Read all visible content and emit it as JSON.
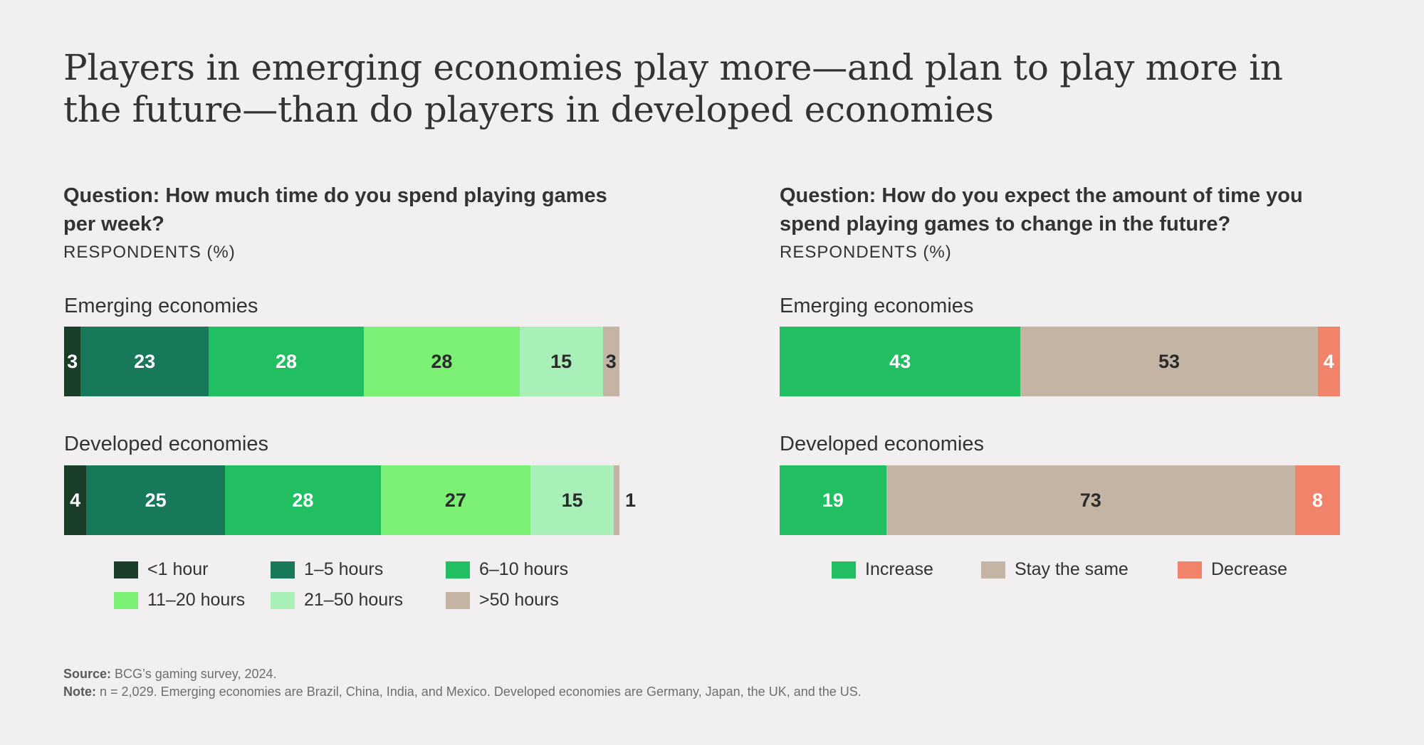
{
  "title": "Players in emerging economies play more—and plan to play more in the future—than do players in developed economies",
  "chart_data": [
    {
      "type": "bar",
      "orientation": "horizontal-stacked",
      "question": "Question: How much time do you spend playing games per week?",
      "unit": "RESPONDENTS (%)",
      "categories": [
        "Emerging economies",
        "Developed economies"
      ],
      "series": [
        {
          "name": "<1 hour",
          "color": "#1a3d27",
          "label_color": "#ffffff",
          "values": [
            3,
            4
          ]
        },
        {
          "name": "1–5 hours",
          "color": "#18795a",
          "label_color": "#ffffff",
          "values": [
            23,
            25
          ]
        },
        {
          "name": "6–10 hours",
          "color": "#21bf62",
          "label_color": "#ffffff",
          "values": [
            28,
            28
          ]
        },
        {
          "name": "11–20 hours",
          "color": "#7cf074",
          "label_color": "#2b2b2b",
          "values": [
            28,
            27
          ]
        },
        {
          "name": "21–50 hours",
          "color": "#a8efb8",
          "label_color": "#2b2b2b",
          "values": [
            15,
            15
          ]
        },
        {
          "name": ">50 hours",
          "color": "#c3b4a4",
          "label_color": "#2b2b2b",
          "values": [
            3,
            1
          ]
        }
      ]
    },
    {
      "type": "bar",
      "orientation": "horizontal-stacked",
      "question": "Question: How do you expect the amount of time you spend playing games to change in the future?",
      "unit": "RESPONDENTS (%)",
      "categories": [
        "Emerging economies",
        "Developed economies"
      ],
      "series": [
        {
          "name": "Increase",
          "color": "#21bf62",
          "label_color": "#ffffff",
          "values": [
            43,
            19
          ]
        },
        {
          "name": "Stay the same",
          "color": "#c3b4a4",
          "label_color": "#2b2b2b",
          "values": [
            53,
            73
          ]
        },
        {
          "name": "Decrease",
          "color": "#f2836b",
          "label_color": "#ffffff",
          "values": [
            4,
            8
          ]
        }
      ]
    }
  ],
  "footer": {
    "source_label": "Source:",
    "source_text": "BCG’s gaming survey, 2024.",
    "note_label": "Note:",
    "note_text": "n = 2,029. Emerging economies are Brazil, China, India, and Mexico. Developed economies are Germany, Japan, the UK, and the US."
  }
}
